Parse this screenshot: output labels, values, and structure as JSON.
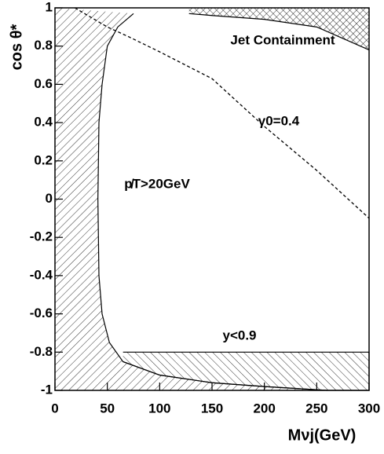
{
  "chart_data": {
    "type": "line",
    "x_label": "Mνj(GeV)",
    "y_label": "cos θ*",
    "xlim": [
      0,
      300
    ],
    "ylim": [
      -1,
      1
    ],
    "xticks": [
      0,
      50,
      100,
      150,
      200,
      250,
      300
    ],
    "yticks": [
      -1,
      -0.8,
      -0.6,
      -0.4,
      -0.2,
      0,
      0.2,
      0.4,
      0.6,
      0.8,
      1
    ],
    "curve": {
      "label": "γ0=0.4",
      "color": "#000000",
      "x": [
        19,
        50,
        70,
        100,
        150,
        200,
        250,
        300
      ],
      "y": [
        1,
        0.9,
        0.85,
        0.77,
        0.63,
        0.38,
        0.15,
        -0.1
      ]
    },
    "regions": [
      {
        "label": "p̸T>20GeV",
        "hatch": "single",
        "x": [
          75,
          60,
          50,
          45,
          42,
          41,
          42,
          45,
          52,
          65,
          100,
          150,
          200,
          260
        ],
        "y": [
          0.97,
          0.9,
          0.8,
          0.6,
          0.4,
          0,
          -0.4,
          -0.6,
          -0.75,
          -0.85,
          -0.92,
          -0.96,
          -0.98,
          -1
        ]
      },
      {
        "label": "Jet Containment",
        "hatch": "cross",
        "x": [
          128,
          150,
          200,
          250,
          300
        ],
        "y": [
          0.97,
          0.96,
          0.94,
          0.9,
          0.78
        ]
      },
      {
        "label": "y<0.9",
        "hatch": "back",
        "x": [
          65,
          300,
          300,
          260,
          200,
          150,
          100,
          65
        ],
        "y": [
          -0.8,
          -0.8,
          -1,
          -1,
          -0.98,
          -0.96,
          -0.92,
          -0.85
        ]
      }
    ]
  }
}
